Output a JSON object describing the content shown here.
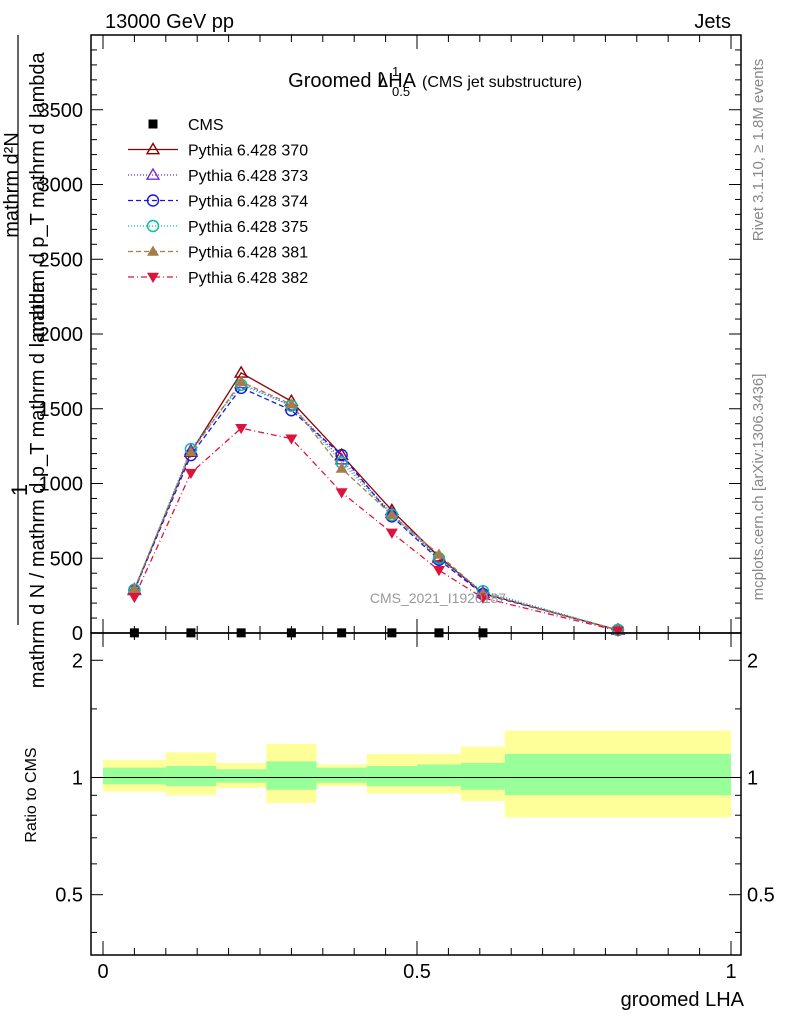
{
  "header": {
    "energy": "13000 GeV pp",
    "process": "Jets",
    "side_generator": "Rivet 3.1.10, ≥ 1.8M events",
    "side_site": "mcplots.cern.ch [arXiv:1306.3436]",
    "watermark": "CMS_2021_I1920187"
  },
  "chart_data": [
    {
      "type": "line",
      "title_main": "Groomed LHA",
      "title_symbol": "λ",
      "title_sup": "1",
      "title_sub": "0.5",
      "title_note": "(CMS jet substructure)",
      "ylabel_numerator": "mathrm d²N",
      "ylabel_denominator": "mathrm d p_T mathrm d lambda",
      "ylabel_overlay": "mathrm d N / mathrm d p_T mathrm d lambda",
      "ylabel_prefix": "1",
      "ylim": [
        0,
        4000
      ],
      "yticks": [
        0,
        500,
        1000,
        1500,
        2000,
        2500,
        3000,
        3500
      ],
      "ytick_labels": [
        "0",
        "500",
        "1000",
        "1500",
        "2000",
        "2500",
        "3000",
        "3500"
      ],
      "xlim": [
        -0.02,
        1.0
      ],
      "x": [
        0.05,
        0.14,
        0.22,
        0.3,
        0.38,
        0.46,
        0.535,
        0.605,
        0.82
      ],
      "series": [
        {
          "name": "CMS",
          "color": "#000000",
          "marker": "square",
          "dash": "",
          "values": [
            1,
            1,
            1,
            1,
            1,
            1,
            1,
            1,
            null
          ]
        },
        {
          "name": "Pythia 6.428 370",
          "color": "#8b0000",
          "marker": "triangle-up-open",
          "dash": "",
          "values": [
            290,
            1210,
            1740,
            1550,
            1190,
            820,
            510,
            265,
            20
          ]
        },
        {
          "name": "Pythia 6.428 373",
          "color": "#7b2fd0",
          "marker": "triangle-up-open",
          "dash": "1,2",
          "values": [
            285,
            1220,
            1670,
            1520,
            1160,
            800,
            500,
            270,
            20
          ]
        },
        {
          "name": "Pythia 6.428 374",
          "color": "#1515e6",
          "marker": "circle-open",
          "dash": "5,3",
          "values": [
            285,
            1190,
            1640,
            1490,
            1190,
            780,
            490,
            260,
            20
          ]
        },
        {
          "name": "Pythia 6.428 375",
          "color": "#00c0a0",
          "marker": "circle-open",
          "dash": "1,2",
          "values": [
            290,
            1230,
            1660,
            1520,
            1140,
            790,
            500,
            280,
            20
          ]
        },
        {
          "name": "Pythia 6.428 381",
          "color": "#a87b4a",
          "marker": "triangle-up",
          "dash": "5,3",
          "values": [
            295,
            1210,
            1680,
            1530,
            1100,
            790,
            525,
            265,
            20
          ]
        },
        {
          "name": "Pythia 6.428 382",
          "color": "#dc143c",
          "marker": "triangle-down",
          "dash": "6,3,1,3",
          "values": [
            240,
            1070,
            1370,
            1300,
            940,
            670,
            420,
            235,
            15
          ]
        }
      ]
    },
    {
      "type": "area",
      "ylabel": "Ratio to CMS",
      "xlabel": "groomed LHA",
      "ylim": [
        0.35,
        2.35
      ],
      "scale": "log",
      "yticks": [
        0.5,
        1,
        2
      ],
      "ytick_labels": [
        "0.5",
        "1",
        "2"
      ],
      "xticks": [
        0,
        0.5,
        1
      ],
      "xtick_labels": [
        "0",
        "0.5",
        "1"
      ],
      "bin_edges": [
        0.0,
        0.1,
        0.18,
        0.26,
        0.34,
        0.42,
        0.5,
        0.57,
        0.64,
        1.0
      ],
      "band_inner_color": "#99ff99",
      "band_outer_color": "#ffff99",
      "inner_band": [
        [
          0.96,
          1.06
        ],
        [
          0.95,
          1.07
        ],
        [
          0.97,
          1.05
        ],
        [
          0.93,
          1.1
        ],
        [
          0.97,
          1.06
        ],
        [
          0.95,
          1.07
        ],
        [
          0.95,
          1.08
        ],
        [
          0.93,
          1.09
        ],
        [
          0.9,
          1.15
        ]
      ],
      "outer_band": [
        [
          0.92,
          1.11
        ],
        [
          0.9,
          1.16
        ],
        [
          0.94,
          1.09
        ],
        [
          0.86,
          1.22
        ],
        [
          0.95,
          1.08
        ],
        [
          0.91,
          1.15
        ],
        [
          0.91,
          1.15
        ],
        [
          0.87,
          1.2
        ],
        [
          0.79,
          1.32
        ]
      ]
    }
  ]
}
